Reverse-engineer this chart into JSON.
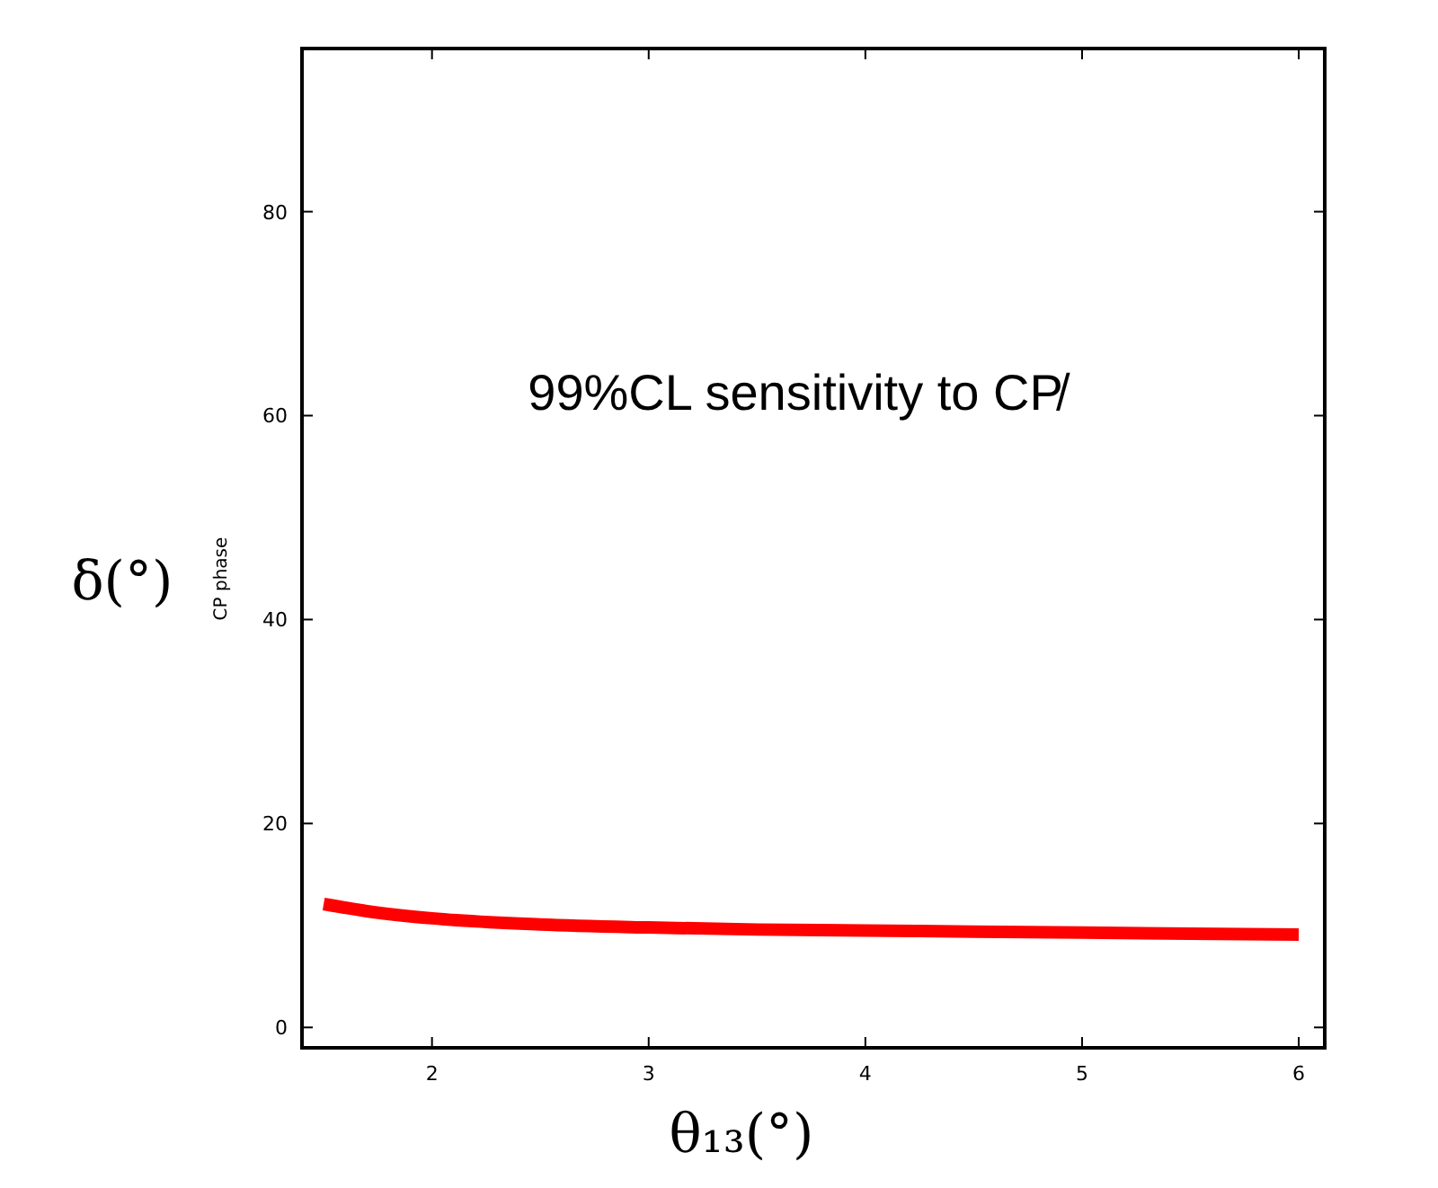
{
  "chart_data": {
    "type": "line",
    "x": [
      1.5,
      1.7,
      2.0,
      2.5,
      3.0,
      3.5,
      4.0,
      4.5,
      5.0,
      5.5,
      6.0
    ],
    "series": [
      {
        "color": "#ff0000",
        "values": [
          12.1,
          11.4,
          10.7,
          10.1,
          9.8,
          9.6,
          9.5,
          9.4,
          9.3,
          9.2,
          9.1
        ]
      }
    ],
    "xlabel": "θ₁₃(°)",
    "ylabel": "δ(°)",
    "annotations": [
      "99%CL sensitivity to CP̸",
      "CP phase"
    ],
    "xlim": [
      1.4,
      6.12
    ],
    "ylim": [
      -2,
      96
    ],
    "xticks": [
      2,
      3,
      4,
      5,
      6
    ],
    "yticks": [
      0,
      20,
      40,
      60,
      80
    ],
    "grid": false
  }
}
